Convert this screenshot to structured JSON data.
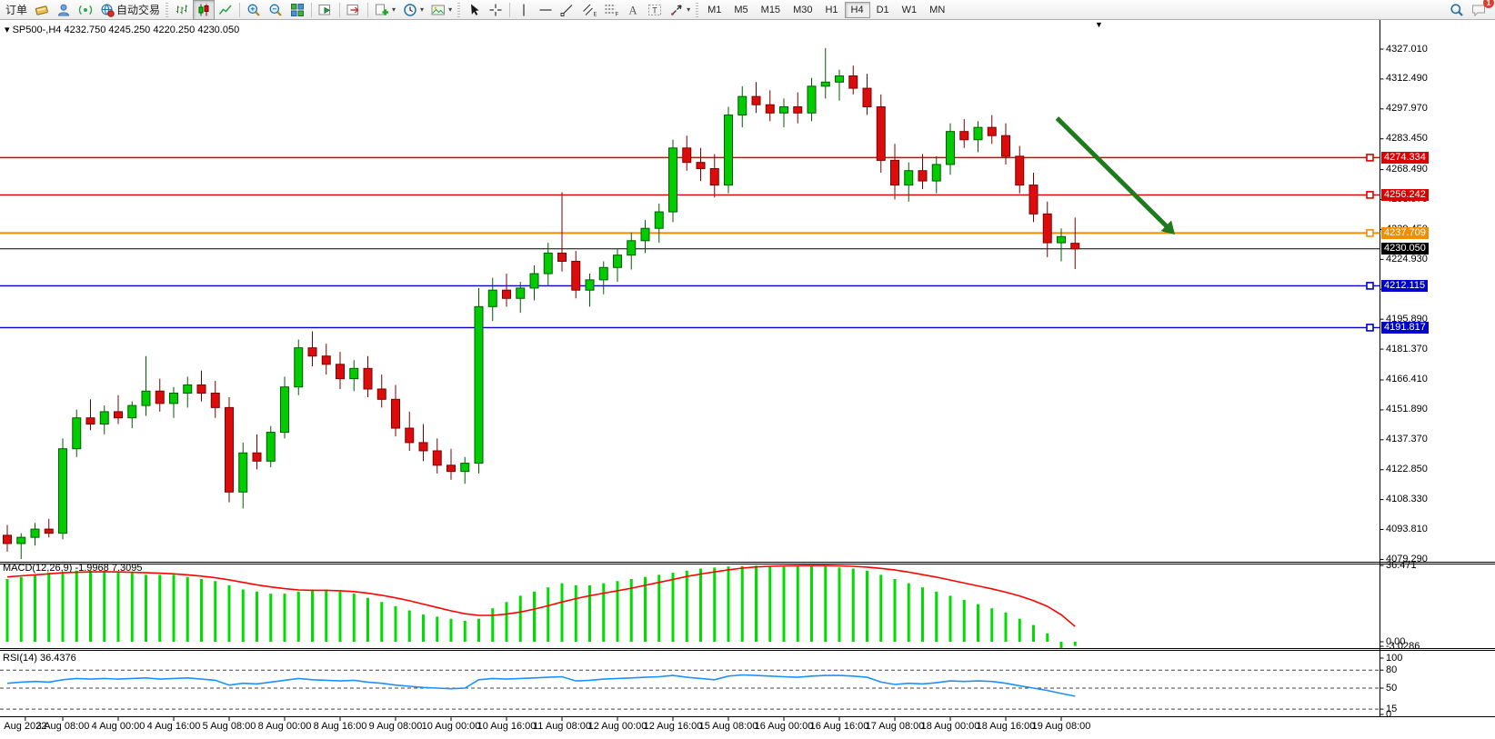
{
  "toolbar": {
    "items": [
      {
        "kind": "button",
        "name": "orders",
        "label": "订单"
      },
      {
        "kind": "icon",
        "name": "new-order"
      },
      {
        "kind": "icon",
        "name": "community"
      },
      {
        "kind": "icon",
        "name": "signals"
      },
      {
        "kind": "button",
        "name": "autotrade",
        "label": "自动交易",
        "icon": "autotrade"
      },
      {
        "kind": "grip"
      },
      {
        "kind": "icon",
        "name": "bars-chart"
      },
      {
        "kind": "icon",
        "name": "candles-chart",
        "active": true
      },
      {
        "kind": "icon",
        "name": "line-chart"
      },
      {
        "kind": "sep"
      },
      {
        "kind": "icon",
        "name": "zoom-in"
      },
      {
        "kind": "icon",
        "name": "zoom-out"
      },
      {
        "kind": "icon",
        "name": "tile-windows"
      },
      {
        "kind": "sep"
      },
      {
        "kind": "icon",
        "name": "auto-scroll"
      },
      {
        "kind": "sep"
      },
      {
        "kind": "icon",
        "name": "chart-shift"
      },
      {
        "kind": "sep"
      },
      {
        "kind": "icon",
        "name": "new-chart",
        "dropdown": true
      },
      {
        "kind": "icon",
        "name": "period",
        "dropdown": true
      },
      {
        "kind": "icon",
        "name": "templates",
        "dropdown": true
      },
      {
        "kind": "grip"
      },
      {
        "kind": "icon",
        "name": "cursor"
      },
      {
        "kind": "icon",
        "name": "crosshair"
      },
      {
        "kind": "sep"
      },
      {
        "kind": "icon",
        "name": "vertical-line"
      },
      {
        "kind": "icon",
        "name": "horizontal-line"
      },
      {
        "kind": "icon",
        "name": "trendline"
      },
      {
        "kind": "icon",
        "name": "channel"
      },
      {
        "kind": "icon",
        "name": "fibonacci"
      },
      {
        "kind": "icon",
        "name": "text"
      },
      {
        "kind": "icon",
        "name": "text-label"
      },
      {
        "kind": "icon",
        "name": "arrows",
        "dropdown": true
      },
      {
        "kind": "grip"
      }
    ],
    "timeframes": [
      {
        "label": "M1"
      },
      {
        "label": "M5"
      },
      {
        "label": "M15"
      },
      {
        "label": "M30"
      },
      {
        "label": "H1"
      },
      {
        "label": "H4",
        "active": true
      },
      {
        "label": "D1"
      },
      {
        "label": "W1"
      },
      {
        "label": "MN"
      }
    ],
    "right": {
      "search_icon": "search",
      "chat_icon": "chat",
      "chat_badge": "1"
    }
  },
  "chart": {
    "title_marker": "▾",
    "symbol_period": "SP500-,H4",
    "open": "4232.750",
    "high": "4245.250",
    "low": "4220.250",
    "close": "4230.050",
    "shift_marker": "▼"
  },
  "price_scale": {
    "ticks": [
      "4327.010",
      "4312.490",
      "4297.970",
      "4283.450",
      "4268.490",
      "4253.970",
      "4239.450",
      "4224.930",
      "4210.410",
      "4195.890",
      "4181.370",
      "4166.410",
      "4151.890",
      "4137.370",
      "4122.850",
      "4108.330",
      "4093.810",
      "4079.290"
    ]
  },
  "xaxis": {
    "labels": [
      {
        "text": "Aug 2022",
        "bar": 1.3
      },
      {
        "text": "3 Aug 08:00",
        "bar": 4
      },
      {
        "text": "4 Aug 00:00",
        "bar": 8
      },
      {
        "text": "4 Aug 16:00",
        "bar": 12
      },
      {
        "text": "5 Aug 08:00",
        "bar": 16
      },
      {
        "text": "8 Aug 00:00",
        "bar": 20
      },
      {
        "text": "8 Aug 16:00",
        "bar": 24
      },
      {
        "text": "9 Aug 08:00",
        "bar": 28
      },
      {
        "text": "10 Aug 00:00",
        "bar": 32
      },
      {
        "text": "10 Aug 16:00",
        "bar": 36
      },
      {
        "text": "11 Aug 08:00",
        "bar": 40
      },
      {
        "text": "12 Aug 00:00",
        "bar": 44
      },
      {
        "text": "12 Aug 16:00",
        "bar": 48
      },
      {
        "text": "15 Aug 08:00",
        "bar": 52
      },
      {
        "text": "16 Aug 00:00",
        "bar": 56
      },
      {
        "text": "16 Aug 16:00",
        "bar": 60
      },
      {
        "text": "17 Aug 08:00",
        "bar": 64
      },
      {
        "text": "18 Aug 00:00",
        "bar": 68
      },
      {
        "text": "18 Aug 16:00",
        "bar": 72
      },
      {
        "text": "19 Aug 08:00",
        "bar": 76
      }
    ]
  },
  "colors": {
    "bull_fill": "#00cc00",
    "bull_stroke": "#005c00",
    "bear_fill": "#dd0c0c",
    "bear_stroke": "#7d0000",
    "red_level": "#dd0000",
    "orange_level": "#ef8e00",
    "blue_level": "#0000cc",
    "current": "#000000",
    "macd_hist": "#00dd00",
    "macd_signal": "#ff0000",
    "rsi_line": "#1e90ff",
    "arrow": "#1d7a1d"
  },
  "chart_data": [
    {
      "type": "candlestick",
      "title": "SP500-,H4",
      "timeframe": "H4",
      "ylim": [
        4079.29,
        4333.9
      ],
      "ohlc": [
        [
          4091,
          4096,
          4083,
          4087
        ],
        [
          4087,
          4092,
          4079.5,
          4090
        ],
        [
          4090,
          4097,
          4086,
          4094
        ],
        [
          4094,
          4099,
          4090,
          4092
        ],
        [
          4092,
          4138,
          4089,
          4133
        ],
        [
          4133,
          4152,
          4129,
          4148
        ],
        [
          4148,
          4157,
          4142,
          4145
        ],
        [
          4145,
          4154,
          4140,
          4151
        ],
        [
          4151,
          4159,
          4145,
          4148
        ],
        [
          4148,
          4156,
          4143,
          4154
        ],
        [
          4154,
          4178,
          4149,
          4161
        ],
        [
          4161,
          4167,
          4151,
          4155
        ],
        [
          4155,
          4163,
          4148,
          4160
        ],
        [
          4160,
          4168,
          4153,
          4164
        ],
        [
          4164,
          4171,
          4156,
          4160
        ],
        [
          4160,
          4166,
          4148,
          4153
        ],
        [
          4153,
          4158,
          4107,
          4112
        ],
        [
          4112,
          4136,
          4104,
          4131
        ],
        [
          4131,
          4140,
          4123,
          4127
        ],
        [
          4127,
          4144,
          4124,
          4141
        ],
        [
          4141,
          4168,
          4138,
          4163
        ],
        [
          4163,
          4186,
          4159,
          4182
        ],
        [
          4182,
          4190,
          4173,
          4178
        ],
        [
          4178,
          4184,
          4169,
          4174
        ],
        [
          4174,
          4180,
          4162,
          4167
        ],
        [
          4167,
          4176,
          4161,
          4172
        ],
        [
          4172,
          4178,
          4158,
          4162
        ],
        [
          4162,
          4169,
          4153,
          4157
        ],
        [
          4157,
          4164,
          4139,
          4143
        ],
        [
          4143,
          4151,
          4132,
          4136
        ],
        [
          4136,
          4145,
          4127,
          4132
        ],
        [
          4132,
          4138,
          4121,
          4125
        ],
        [
          4125,
          4133,
          4118,
          4122
        ],
        [
          4122,
          4129,
          4116,
          4126
        ],
        [
          4126,
          4211,
          4121,
          4202
        ],
        [
          4202,
          4216,
          4195,
          4210
        ],
        [
          4210,
          4218,
          4202,
          4206
        ],
        [
          4206,
          4214,
          4199,
          4211
        ],
        [
          4211,
          4222,
          4205,
          4218
        ],
        [
          4218,
          4233,
          4212,
          4228
        ],
        [
          4228,
          4257.5,
          4219,
          4224
        ],
        [
          4224,
          4229,
          4206,
          4210
        ],
        [
          4210,
          4218,
          4202,
          4215
        ],
        [
          4215,
          4224,
          4208,
          4221
        ],
        [
          4221,
          4230,
          4214,
          4227
        ],
        [
          4227,
          4238,
          4220,
          4234
        ],
        [
          4234,
          4244,
          4228,
          4240
        ],
        [
          4240,
          4252,
          4233,
          4248
        ],
        [
          4248,
          4283,
          4243,
          4279
        ],
        [
          4279,
          4285,
          4268,
          4272
        ],
        [
          4272,
          4279,
          4263,
          4269
        ],
        [
          4269,
          4276,
          4255,
          4261
        ],
        [
          4261,
          4299,
          4257,
          4295
        ],
        [
          4295,
          4309,
          4289,
          4304
        ],
        [
          4304,
          4311,
          4296,
          4300
        ],
        [
          4300,
          4307,
          4292,
          4296
        ],
        [
          4296,
          4303,
          4289,
          4299
        ],
        [
          4299,
          4306,
          4291,
          4296
        ],
        [
          4296,
          4313,
          4292,
          4309
        ],
        [
          4309,
          4327.5,
          4303,
          4311
        ],
        [
          4311,
          4317,
          4302,
          4314
        ],
        [
          4314,
          4319,
          4305,
          4308
        ],
        [
          4308,
          4315,
          4295,
          4299
        ],
        [
          4299,
          4305,
          4267,
          4273
        ],
        [
          4273,
          4281,
          4254,
          4261
        ],
        [
          4261,
          4272,
          4253,
          4268
        ],
        [
          4268,
          4276,
          4259,
          4263
        ],
        [
          4263,
          4275,
          4257,
          4271
        ],
        [
          4271,
          4291,
          4266,
          4287
        ],
        [
          4287,
          4293,
          4279,
          4283
        ],
        [
          4283,
          4292,
          4277,
          4289
        ],
        [
          4289,
          4295,
          4281,
          4285
        ],
        [
          4285,
          4291,
          4271,
          4275
        ],
        [
          4275,
          4280,
          4257,
          4261
        ],
        [
          4261,
          4267,
          4243,
          4247
        ],
        [
          4247,
          4253,
          4226,
          4233
        ],
        [
          4233,
          4240,
          4224,
          4236
        ],
        [
          4232.75,
          4245.25,
          4220.25,
          4230.05
        ]
      ],
      "hlines": [
        {
          "price": 4274.334,
          "label": "4274.334",
          "color": "#dd0000",
          "width": 1.4,
          "handle": true
        },
        {
          "price": 4256.242,
          "label": "4256.242",
          "color": "#dd0000",
          "width": 1.4,
          "handle": true
        },
        {
          "price": 4237.709,
          "label": "4237.709",
          "color": "#ef8e00",
          "width": 2,
          "handle": true
        },
        {
          "price": 4230.05,
          "label": "4230.050",
          "color": "#000000",
          "width": 1,
          "handle": false
        },
        {
          "price": 4212.115,
          "label": "4212.115",
          "color": "#0000cc",
          "width": 1.4,
          "handle": true
        },
        {
          "price": 4191.817,
          "label": "4191.817",
          "color": "#0000cc",
          "width": 1.4,
          "handle": true
        }
      ],
      "annotation_arrow": {
        "from_bar": 75.7,
        "from_price": 4293.5,
        "to_bar": 84.2,
        "to_price": 4237.0
      }
    },
    {
      "type": "bar",
      "title": "MACD(12,26,9) -1.9968 7.3095",
      "label": "MACD(12,26,9) -1.9968 7.3095",
      "scale_labels": [
        "36.471",
        "0.00",
        "-3.0286"
      ],
      "ylim": [
        -3.0286,
        36.471
      ],
      "hist": [
        30,
        31,
        32,
        33,
        33,
        34,
        34,
        34,
        33,
        33,
        32,
        32,
        32,
        31,
        30,
        29,
        27,
        25,
        24,
        23,
        23,
        24,
        25,
        25,
        24,
        23,
        21,
        19,
        17,
        15,
        13,
        12,
        11,
        10,
        11,
        16,
        19,
        22,
        24,
        26,
        28,
        27,
        27,
        28,
        29,
        30,
        31,
        32,
        33,
        34,
        35,
        35.5,
        36,
        36.2,
        36.4,
        36.3,
        36,
        36.2,
        36.3,
        36.4,
        35.5,
        35,
        34,
        32,
        30,
        28,
        26,
        24,
        22,
        20,
        18,
        16,
        14,
        11,
        8,
        4,
        -3.0286,
        -1.9968
      ],
      "signal": [
        31,
        31.5,
        32,
        32.5,
        33,
        33.2,
        33.4,
        33.5,
        33.4,
        33.2,
        33,
        32.8,
        32.5,
        32,
        31.4,
        30.6,
        29.6,
        28.4,
        27.2,
        26.2,
        25.4,
        24.8,
        24.6,
        24.6,
        24.4,
        24,
        23.2,
        22.2,
        21,
        19.6,
        18,
        16.4,
        14.8,
        13.4,
        12.6,
        12.6,
        13.2,
        14.2,
        15.6,
        17.2,
        19,
        20.6,
        22,
        23.2,
        24.4,
        25.6,
        27,
        28.4,
        29.8,
        31.2,
        32.4,
        33.4,
        34.4,
        35.2,
        35.8,
        36.1,
        36.3,
        36.4,
        36.45,
        36.45,
        36.3,
        36.1,
        35.7,
        35.1,
        34.3,
        33.3,
        32.1,
        30.9,
        29.5,
        28.1,
        26.7,
        25.3,
        23.7,
        21.9,
        19.7,
        16.9,
        12.9,
        7.31
      ]
    },
    {
      "type": "line",
      "title": "RSI(14) 36.4376",
      "label": "RSI(14) 36.4376",
      "scale_labels": [
        "100",
        "80",
        "50",
        "15",
        "0"
      ],
      "levels": [
        80,
        50,
        15
      ],
      "ylim": [
        0,
        100
      ],
      "values": [
        58,
        60,
        61,
        60,
        64,
        66,
        65,
        66,
        65,
        66,
        67,
        65,
        66,
        67,
        65,
        63,
        55,
        58,
        57,
        60,
        63,
        66,
        64,
        63,
        62,
        63,
        60,
        58,
        55,
        53,
        51,
        50,
        49,
        50,
        64,
        66,
        65,
        66,
        67,
        68,
        69,
        62,
        63,
        65,
        66,
        67,
        68,
        69,
        71,
        68,
        66,
        64,
        70,
        72,
        71,
        70,
        69,
        68,
        70,
        71,
        71,
        70,
        68,
        60,
        56,
        58,
        57,
        59,
        62,
        61,
        62,
        61,
        58,
        54,
        50,
        46,
        41,
        36.44
      ]
    }
  ]
}
